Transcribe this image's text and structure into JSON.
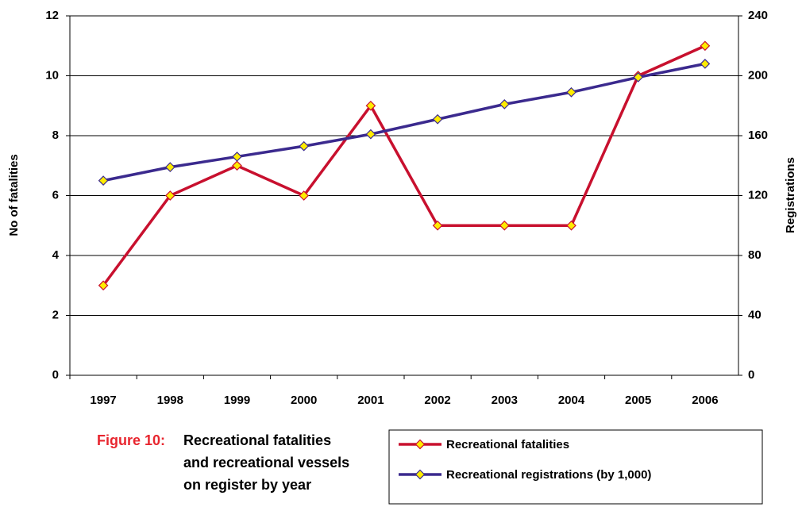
{
  "chart_data": {
    "type": "line",
    "figure_label": "Figure 10:",
    "title": [
      "Recreational fatalities",
      "and recreational vessels",
      "on register by year"
    ],
    "y_label": "No of fatalities",
    "y2_label": "Registrations",
    "categories": [
      "1997",
      "1998",
      "1999",
      "2000",
      "2001",
      "2002",
      "2003",
      "2004",
      "2005",
      "2006"
    ],
    "series": [
      {
        "name": "Recreational fatalities",
        "color": "#c8102e",
        "values": [
          3,
          6,
          7,
          6,
          9,
          5,
          5,
          5,
          10,
          11
        ]
      },
      {
        "name": "Recreational registrations (by 1,000)",
        "color": "#3b2a8e",
        "axis": "y2",
        "values": [
          130,
          139,
          146,
          153,
          161,
          171,
          181,
          189,
          199,
          208
        ]
      }
    ],
    "marker_color": "#ffec00",
    "ylim": [
      0,
      12
    ],
    "yticks": [
      0,
      2,
      4,
      6,
      8,
      10,
      12
    ],
    "y2lim": [
      0,
      240
    ],
    "y2ticks": [
      0,
      40,
      80,
      120,
      160,
      200,
      240
    ],
    "grid": true,
    "legend": "bottom-right"
  }
}
